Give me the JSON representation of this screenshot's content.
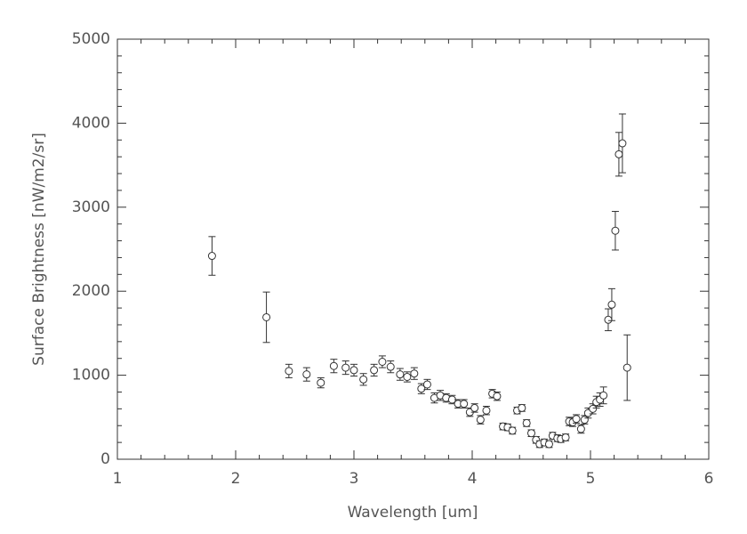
{
  "chart_data": {
    "type": "scatter",
    "x_label": "Wavelength [um]",
    "y_label": "Surface Brightness [nW/m2/sr]",
    "xlim": [
      1,
      6
    ],
    "xticks": [
      1,
      2,
      3,
      4,
      5,
      6
    ],
    "ylim": [
      0,
      5000
    ],
    "yticks": [
      0,
      1000,
      2000,
      3000,
      4000,
      5000
    ],
    "color": "#333333",
    "x": [
      1.8,
      2.26,
      2.45,
      2.6,
      2.72,
      2.83,
      2.93,
      3.0,
      3.08,
      3.17,
      3.24,
      3.31,
      3.39,
      3.45,
      3.51,
      3.57,
      3.62,
      3.68,
      3.73,
      3.78,
      3.83,
      3.88,
      3.93,
      3.98,
      4.02,
      4.07,
      4.12,
      4.17,
      4.21,
      4.26,
      4.3,
      4.34,
      4.38,
      4.42,
      4.46,
      4.5,
      4.54,
      4.57,
      4.61,
      4.65,
      4.68,
      4.72,
      4.75,
      4.79,
      4.82,
      4.85,
      4.88,
      4.92,
      4.95,
      4.98,
      5.02,
      5.05,
      5.08,
      5.11,
      5.15,
      5.18,
      5.21,
      5.24,
      5.27,
      5.31
    ],
    "values": [
      2420,
      1690,
      1050,
      1010,
      910,
      1110,
      1090,
      1060,
      950,
      1060,
      1160,
      1100,
      1010,
      980,
      1020,
      840,
      890,
      730,
      760,
      730,
      710,
      660,
      660,
      560,
      610,
      470,
      580,
      780,
      750,
      390,
      380,
      340,
      580,
      610,
      430,
      310,
      230,
      180,
      200,
      180,
      280,
      250,
      240,
      260,
      450,
      440,
      480,
      360,
      470,
      550,
      600,
      680,
      710,
      760,
      1660,
      1840,
      2720,
      3630,
      3760,
      1090
    ],
    "errors": [
      230,
      300,
      80,
      80,
      60,
      80,
      80,
      70,
      70,
      70,
      70,
      70,
      70,
      60,
      70,
      60,
      60,
      60,
      60,
      50,
      50,
      50,
      50,
      50,
      50,
      50,
      50,
      50,
      50,
      40,
      40,
      40,
      40,
      40,
      40,
      40,
      40,
      40,
      40,
      40,
      40,
      40,
      40,
      40,
      50,
      50,
      50,
      50,
      50,
      60,
      60,
      70,
      80,
      100,
      130,
      190,
      230,
      260,
      350,
      390
    ]
  }
}
